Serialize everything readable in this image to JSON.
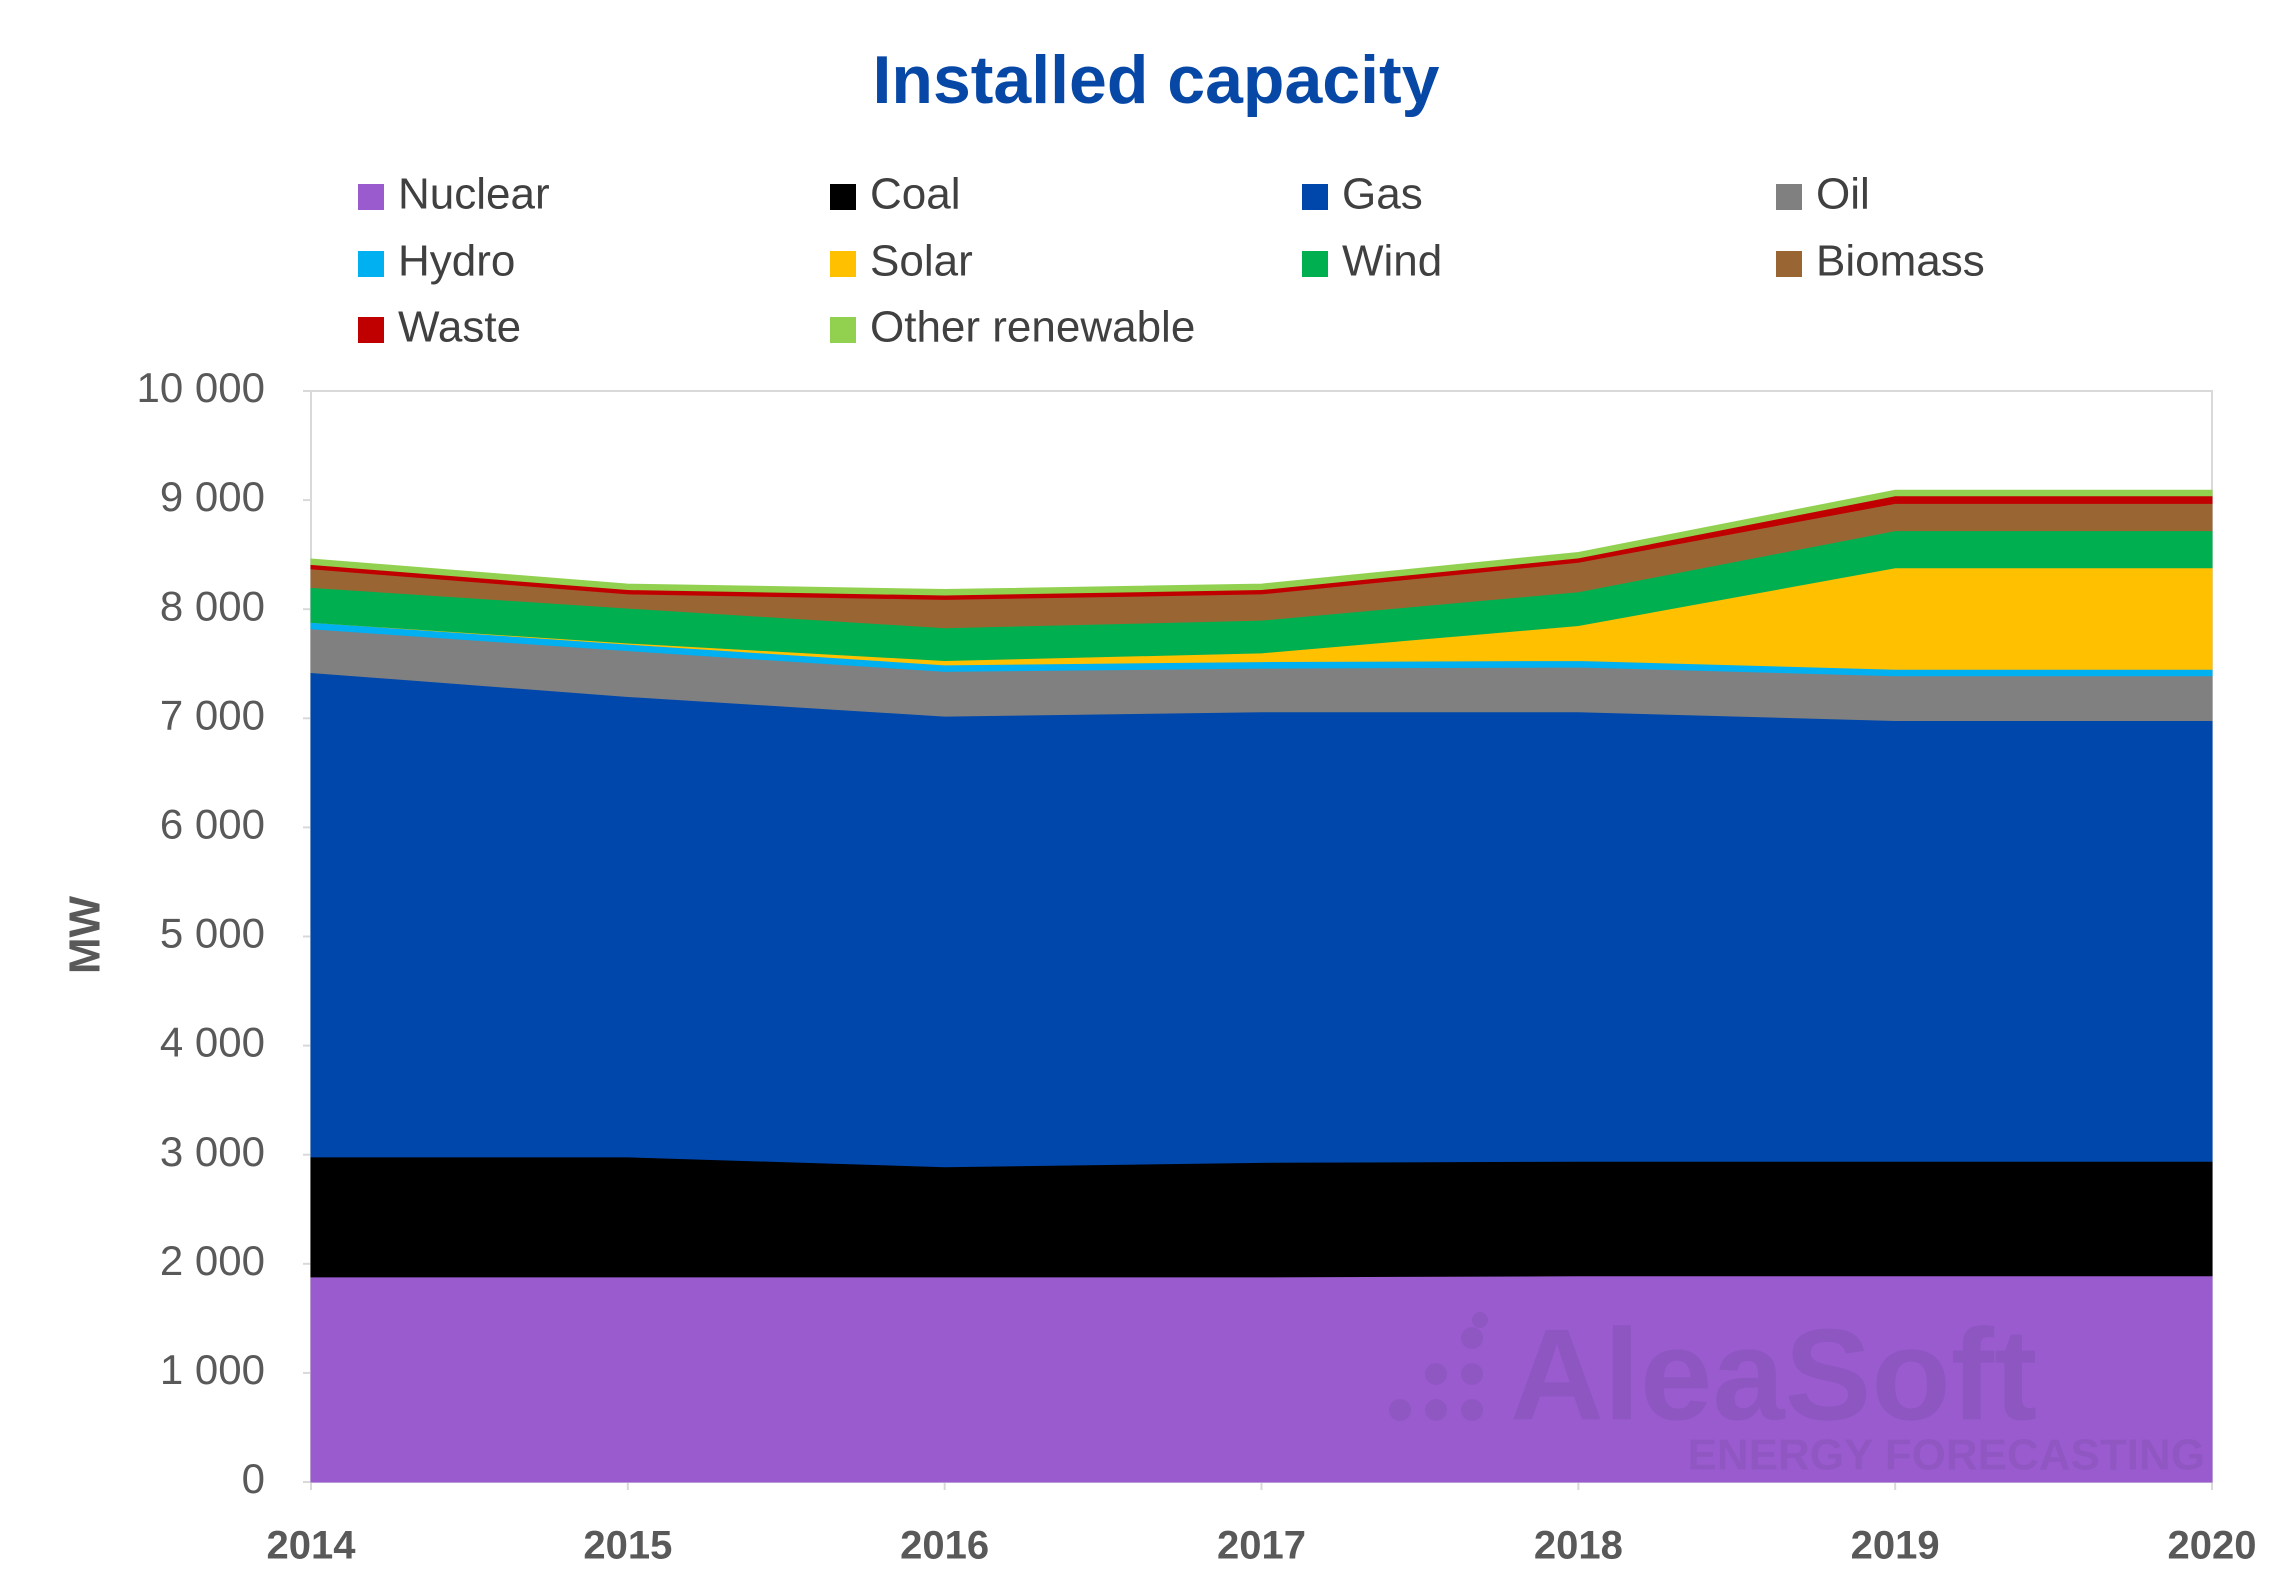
{
  "chart_data": {
    "type": "stacked_area",
    "title": "Installed capacity",
    "y_label": "MW",
    "x": [
      2014,
      2015,
      2016,
      2017,
      2018,
      2019,
      2020
    ],
    "xlim": [
      2014,
      2020
    ],
    "xticks": [
      2014,
      2015,
      2016,
      2017,
      2018,
      2019,
      2020
    ],
    "ylim": [
      0,
      10000
    ],
    "yticks": [
      0,
      {
        "value": 1000,
        "label": "1 000"
      },
      {
        "value": 2000,
        "label": "2 000"
      },
      {
        "value": 3000,
        "label": "3 000"
      },
      {
        "value": 4000,
        "label": "4 000"
      },
      {
        "value": 5000,
        "label": "5 000"
      },
      {
        "value": 6000,
        "label": "6 000"
      },
      {
        "value": 7000,
        "label": "7 000"
      },
      {
        "value": 8000,
        "label": "8 000"
      },
      {
        "value": 9000,
        "label": "9 000"
      },
      {
        "value": 10000,
        "label": "10 000"
      }
    ],
    "legend": "top",
    "series": [
      {
        "name": "Nuclear",
        "color": "#9a5bcf",
        "values": [
          1880,
          1880,
          1880,
          1880,
          1890,
          1890,
          1890
        ]
      },
      {
        "name": "Coal",
        "color": "#000000",
        "values": [
          1100,
          1100,
          1010,
          1050,
          1050,
          1050,
          1050
        ]
      },
      {
        "name": "Gas",
        "color": "#0047ab",
        "values": [
          4440,
          4220,
          4130,
          4130,
          4120,
          4040,
          4040
        ]
      },
      {
        "name": "Oil",
        "color": "#808080",
        "values": [
          400,
          420,
          410,
          400,
          410,
          410,
          410
        ]
      },
      {
        "name": "Hydro",
        "color": "#00b0f0",
        "values": [
          60,
          60,
          60,
          60,
          60,
          60,
          60
        ]
      },
      {
        "name": "Solar",
        "color": "#ffc000",
        "values": [
          0,
          10,
          40,
          80,
          320,
          930,
          930
        ]
      },
      {
        "name": "Wind",
        "color": "#00b050",
        "values": [
          320,
          320,
          300,
          300,
          310,
          340,
          340
        ]
      },
      {
        "name": "Biomass",
        "color": "#996633",
        "values": [
          170,
          130,
          260,
          240,
          270,
          250,
          250
        ]
      },
      {
        "name": "Waste",
        "color": "#c00000",
        "values": [
          40,
          40,
          40,
          40,
          40,
          70,
          70
        ]
      },
      {
        "name": "Other renewable",
        "color": "#92d050",
        "values": [
          50,
          50,
          50,
          50,
          50,
          50,
          50
        ]
      }
    ],
    "watermark": {
      "brand": "AleaSoft",
      "tagline": "ENERGY FORECASTING"
    }
  }
}
